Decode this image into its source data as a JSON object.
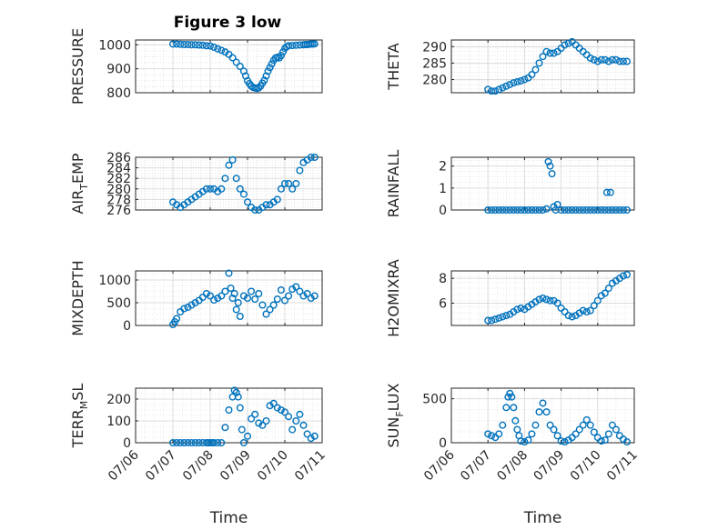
{
  "figure_title": "Figure 3 low",
  "marker_color": "#0072BD",
  "chart_data": [
    {
      "type": "scatter",
      "name": "pressure",
      "ylabel": "PRESSURE",
      "ylim": [
        800,
        1020
      ],
      "yticks": [
        800,
        900,
        1000
      ],
      "grid": true,
      "x": [
        1,
        1.1,
        1.2,
        1.3,
        1.4,
        1.5,
        1.6,
        1.7,
        1.8,
        1.9,
        2.0,
        2.1,
        2.2,
        2.3,
        2.4,
        2.5,
        2.6,
        2.7,
        2.8,
        2.9,
        2.95,
        3.0,
        3.05,
        3.1,
        3.15,
        3.2,
        3.25,
        3.3,
        3.35,
        3.4,
        3.45,
        3.5,
        3.55,
        3.6,
        3.65,
        3.7,
        3.75,
        3.8,
        3.85,
        3.9,
        3.95,
        4.0,
        4.05,
        4.1,
        4.2,
        4.3,
        4.4,
        4.5,
        4.55,
        4.6,
        4.65,
        4.7,
        4.75,
        4.8
      ],
      "y": [
        1003,
        1003,
        1002,
        1001,
        1001,
        1000,
        1000,
        999,
        998,
        996,
        995,
        990,
        983,
        977,
        970,
        960,
        946,
        927,
        910,
        890,
        870,
        850,
        838,
        828,
        822,
        820,
        818,
        820,
        828,
        840,
        852,
        870,
        890,
        905,
        920,
        935,
        945,
        948,
        945,
        955,
        970,
        985,
        992,
        996,
        997,
        998,
        999,
        1000,
        1001,
        1001,
        1002,
        1003,
        1003,
        1004
      ]
    },
    {
      "type": "scatter",
      "name": "theta",
      "ylabel": "THETA",
      "ylim": [
        276,
        292
      ],
      "yticks": [
        280,
        285,
        290
      ],
      "grid": true,
      "x": [
        1,
        1.1,
        1.2,
        1.3,
        1.4,
        1.5,
        1.6,
        1.7,
        1.8,
        1.9,
        2.0,
        2.1,
        2.2,
        2.3,
        2.4,
        2.5,
        2.6,
        2.7,
        2.8,
        2.9,
        3.0,
        3.1,
        3.2,
        3.3,
        3.4,
        3.5,
        3.6,
        3.7,
        3.8,
        3.9,
        4.0,
        4.1,
        4.2,
        4.3,
        4.4,
        4.5,
        4.6,
        4.7,
        4.8
      ],
      "y": [
        277,
        276.5,
        276.5,
        277,
        277.5,
        278,
        278.5,
        279,
        279.3,
        279.6,
        280,
        280.5,
        281.5,
        283,
        285,
        287,
        288.5,
        288,
        288,
        288.5,
        289.5,
        290.5,
        291,
        291.5,
        290.5,
        289.5,
        288.5,
        287.5,
        286.5,
        286,
        285.5,
        286,
        286,
        285.5,
        286,
        286,
        285.5,
        285.5,
        285.5
      ]
    },
    {
      "type": "scatter",
      "name": "air_temp",
      "ylabel_main": "AIR",
      "ylabel_sub": "T",
      "ylabel_rest": "EMP",
      "ylim": [
        276,
        286
      ],
      "yticks": [
        276,
        278,
        280,
        282,
        284,
        286
      ],
      "grid": true,
      "x": [
        1,
        1.1,
        1.2,
        1.3,
        1.4,
        1.5,
        1.6,
        1.7,
        1.8,
        1.9,
        2.0,
        2.1,
        2.2,
        2.3,
        2.4,
        2.5,
        2.6,
        2.7,
        2.8,
        2.9,
        3.0,
        3.1,
        3.2,
        3.3,
        3.4,
        3.5,
        3.6,
        3.7,
        3.8,
        3.9,
        4.0,
        4.1,
        4.2,
        4.3,
        4.4,
        4.5,
        4.6,
        4.7,
        4.8
      ],
      "y": [
        277.5,
        277,
        276.5,
        277,
        277.5,
        278,
        278.5,
        279,
        279.5,
        280,
        280,
        280,
        279.5,
        280,
        282,
        284.5,
        285.5,
        282,
        280,
        279,
        277.5,
        276.5,
        276,
        276,
        276.5,
        277,
        277,
        277.5,
        278,
        280,
        281,
        281,
        280,
        281,
        283.5,
        285,
        285.5,
        286,
        286
      ]
    },
    {
      "type": "scatter",
      "name": "rainfall",
      "ylabel": "RAINFALL",
      "ylim": [
        0,
        2.4
      ],
      "yticks": [
        0,
        1,
        2
      ],
      "grid": true,
      "x": [
        1,
        1.1,
        1.2,
        1.3,
        1.4,
        1.5,
        1.6,
        1.7,
        1.8,
        1.9,
        2.0,
        2.1,
        2.2,
        2.3,
        2.4,
        2.5,
        2.6,
        2.65,
        2.7,
        2.75,
        2.8,
        2.85,
        2.9,
        3.0,
        3.1,
        3.2,
        3.3,
        3.4,
        3.5,
        3.6,
        3.7,
        3.8,
        3.9,
        4.0,
        4.1,
        4.2,
        4.25,
        4.3,
        4.35,
        4.4,
        4.5,
        4.6,
        4.7,
        4.8
      ],
      "y": [
        0,
        0,
        0,
        0,
        0,
        0,
        0,
        0,
        0,
        0,
        0,
        0,
        0,
        0,
        0,
        0,
        0.05,
        2.2,
        2.0,
        1.65,
        0.15,
        0,
        0.25,
        0,
        0,
        0,
        0,
        0,
        0,
        0,
        0,
        0,
        0,
        0,
        0,
        0,
        0.8,
        0,
        0.8,
        0,
        0,
        0,
        0,
        0
      ]
    },
    {
      "type": "scatter",
      "name": "mixdepth",
      "ylabel": "MIXDEPTH",
      "ylim": [
        0,
        1200
      ],
      "yticks": [
        0,
        500,
        1000
      ],
      "grid": true,
      "x": [
        1,
        1.05,
        1.1,
        1.2,
        1.3,
        1.4,
        1.5,
        1.6,
        1.7,
        1.8,
        1.9,
        2.0,
        2.1,
        2.2,
        2.3,
        2.4,
        2.5,
        2.55,
        2.6,
        2.65,
        2.7,
        2.75,
        2.8,
        2.9,
        3.0,
        3.1,
        3.2,
        3.3,
        3.4,
        3.5,
        3.6,
        3.7,
        3.8,
        3.9,
        4.0,
        4.1,
        4.2,
        4.3,
        4.4,
        4.5,
        4.6,
        4.7,
        4.8
      ],
      "y": [
        20,
        80,
        150,
        300,
        370,
        400,
        450,
        500,
        550,
        620,
        700,
        650,
        560,
        600,
        650,
        750,
        1150,
        820,
        600,
        700,
        350,
        500,
        200,
        650,
        600,
        750,
        580,
        700,
        450,
        250,
        350,
        450,
        580,
        780,
        550,
        650,
        800,
        850,
        750,
        650,
        700,
        600,
        650
      ]
    },
    {
      "type": "scatter",
      "name": "h2omixra",
      "ylabel": "H2OMIXRA",
      "ylim": [
        4.2,
        8.6
      ],
      "yticks": [
        6,
        8
      ],
      "grid": true,
      "x": [
        1,
        1.1,
        1.2,
        1.3,
        1.4,
        1.5,
        1.6,
        1.7,
        1.8,
        1.9,
        2.0,
        2.1,
        2.2,
        2.3,
        2.4,
        2.5,
        2.6,
        2.7,
        2.8,
        2.9,
        3.0,
        3.1,
        3.2,
        3.3,
        3.4,
        3.5,
        3.6,
        3.7,
        3.8,
        3.9,
        4.0,
        4.1,
        4.2,
        4.3,
        4.4,
        4.5,
        4.6,
        4.7,
        4.8
      ],
      "y": [
        4.6,
        4.6,
        4.7,
        4.8,
        4.9,
        5.0,
        5.1,
        5.3,
        5.5,
        5.6,
        5.5,
        5.7,
        5.9,
        6.1,
        6.3,
        6.4,
        6.3,
        6.2,
        6.2,
        6.0,
        5.6,
        5.3,
        5.0,
        4.9,
        5.0,
        5.2,
        5.4,
        5.3,
        5.4,
        5.8,
        6.2,
        6.6,
        6.8,
        7.2,
        7.6,
        7.8,
        8.0,
        8.2,
        8.3
      ]
    },
    {
      "type": "scatter",
      "name": "terr_msl",
      "ylabel_main": "TERR",
      "ylabel_sub": "M",
      "ylabel_rest": "SL",
      "ylim": [
        0,
        250
      ],
      "yticks": [
        0,
        100,
        200
      ],
      "grid": true,
      "x": [
        1,
        1.1,
        1.2,
        1.3,
        1.4,
        1.5,
        1.6,
        1.7,
        1.8,
        1.9,
        1.95,
        2.0,
        2.05,
        2.1,
        2.2,
        2.3,
        2.4,
        2.5,
        2.6,
        2.65,
        2.7,
        2.75,
        2.8,
        2.85,
        2.9,
        3.0,
        3.1,
        3.2,
        3.3,
        3.4,
        3.5,
        3.6,
        3.7,
        3.8,
        3.9,
        4.0,
        4.1,
        4.2,
        4.3,
        4.4,
        4.5,
        4.6,
        4.7,
        4.8
      ],
      "y": [
        0,
        0,
        0,
        0,
        0,
        0,
        0,
        0,
        0,
        0,
        0,
        0,
        0,
        0,
        0,
        0,
        70,
        150,
        210,
        240,
        230,
        210,
        160,
        60,
        0,
        30,
        110,
        130,
        90,
        80,
        100,
        170,
        180,
        160,
        150,
        140,
        120,
        60,
        100,
        130,
        80,
        40,
        20,
        30
      ]
    },
    {
      "type": "scatter",
      "name": "sun_flux",
      "ylabel_main": "SUN",
      "ylabel_sub": "F",
      "ylabel_rest": "LUX",
      "ylim": [
        0,
        620
      ],
      "yticks": [
        0,
        500
      ],
      "grid": true,
      "x": [
        1,
        1.1,
        1.2,
        1.3,
        1.4,
        1.5,
        1.55,
        1.6,
        1.65,
        1.7,
        1.75,
        1.8,
        1.85,
        1.9,
        2.0,
        2.1,
        2.2,
        2.3,
        2.4,
        2.5,
        2.6,
        2.7,
        2.8,
        2.9,
        3.0,
        3.1,
        3.2,
        3.3,
        3.4,
        3.5,
        3.6,
        3.7,
        3.8,
        3.9,
        4.0,
        4.1,
        4.2,
        4.3,
        4.4,
        4.5,
        4.6,
        4.7,
        4.8
      ],
      "y": [
        100,
        80,
        60,
        100,
        200,
        400,
        520,
        560,
        520,
        400,
        250,
        150,
        80,
        20,
        10,
        30,
        100,
        200,
        350,
        450,
        350,
        200,
        150,
        80,
        20,
        10,
        30,
        60,
        100,
        150,
        200,
        260,
        200,
        120,
        60,
        20,
        30,
        100,
        200,
        150,
        80,
        40,
        10
      ]
    }
  ],
  "x_axis": {
    "label": "Time",
    "ticks": [
      "07/06",
      "07/07",
      "07/08",
      "07/09",
      "07/10",
      "07/11"
    ],
    "tick_values": [
      0,
      1,
      2,
      3,
      4,
      5
    ]
  }
}
